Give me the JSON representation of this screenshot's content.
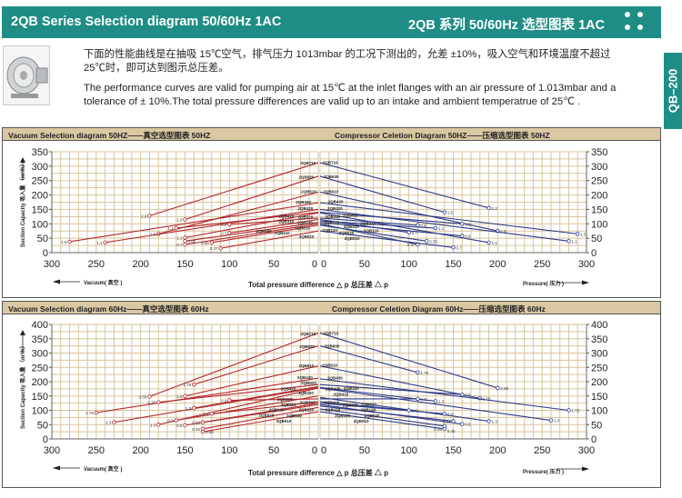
{
  "header": {
    "title_en": "2QB Series Selection diagram 50/60Hz 1AC",
    "title_cn": "2QB 系列 50/60Hz 选型图表 1AC",
    "menu_icon": "four-dots-icon"
  },
  "side_tab": "QB–200",
  "description": {
    "cn": "下面的性能曲线是在抽吸 15℃空气，排气压力 1013mbar 的工况下测出的，允差 ±10%，吸入空气和环境温度不超过 25℃时，即可达到图示总压差。",
    "en": "The performance curves are valid for pumping air at 15℃ at the inlet flanges with an air pressure of 1.013mbar and a tolerance of ± 10%.The total pressure differences are valid up to an intake and ambient temperatrue of 25℃ ."
  },
  "colors": {
    "header": "#1f8d85",
    "title_bar": "#d9c8a2",
    "grid": "#d9c39c",
    "vacuum_line": "#b3262b",
    "compressor_line": "#2b3a88"
  },
  "panels": [
    {
      "vacuum_title": "Vacuum Selection diagram 50HZ——真空选型图表 50HZ",
      "compressor_title": "Compressor Celetion Diagram 50HZ——压缩选型图表 50HZ",
      "ylabel": "Suction Capacity 吸入量 （m³/h）",
      "vacuum_axis": "Vacuum( 真空 )",
      "xlabel": "Total pressure difference △ p 总压差 △ p",
      "pressure_axis": "Pressure( 压力 )"
    },
    {
      "vacuum_title": "Vacuum Selection diagram 60Hz——真空选型图表 60Hz",
      "compressor_title": "Compressor Celetion Diagram 60Hz——压缩选型图表 60Hz",
      "ylabel": "Suction Capacity 吸入量 （m³/h）",
      "vacuum_axis": "Vacuum( 真空 )",
      "xlabel": "Total pressure difference △ p 总压差 △ p",
      "pressure_axis": "Pressure( 压力 )"
    }
  ],
  "chart_data": [
    {
      "type": "line",
      "title": "Vacuum Selection diagram 50HZ",
      "xlim": [
        300,
        0
      ],
      "ylim": [
        0,
        350
      ],
      "xticks": [
        "300",
        "250",
        "200",
        "150",
        "100",
        "50",
        "0"
      ],
      "yticks": [
        "0",
        "50",
        "100",
        "150",
        "200",
        "250",
        "300",
        "350"
      ],
      "grid": true,
      "series": [
        {
          "name": "2QB710",
          "points": [
            [
              0,
              312
            ],
            [
              190,
              128
            ]
          ],
          "end_label": "2.2"
        },
        {
          "name": "2QB630",
          "points": [
            [
              0,
              265
            ],
            [
              150,
              115
            ]
          ],
          "end_label": "1.5"
        },
        {
          "name": "2QB610",
          "points": [
            [
              0,
              210
            ],
            [
              180,
              65
            ]
          ],
          "end_label": "1.5"
        },
        {
          "name": "2QB430",
          "points": [
            [
              0,
              173
            ],
            [
              280,
              38
            ]
          ],
          "end_label": "1.5"
        },
        {
          "name": "2QB420",
          "points": [
            [
              0,
              150
            ],
            [
              240,
              35
            ]
          ],
          "end_label": "1.1"
        },
        {
          "name": "2QB320",
          "points": [
            [
              0,
              140
            ],
            [
              160,
              85
            ]
          ],
          "end_label": "1.1"
        },
        {
          "name": "2QB220",
          "points": [
            [
              0,
              120
            ],
            [
              100,
              98
            ]
          ],
          "end_label": "0.8"
        },
        {
          "name": "2QB410",
          "points": [
            [
              0,
              138
            ],
            [
              150,
              52
            ]
          ],
          "end_label": "1.1"
        },
        {
          "name": "2QB310",
          "points": [
            [
              0,
              115
            ],
            [
              100,
              68
            ]
          ],
          "end_label": "0.7"
        },
        {
          "name": "2QB210",
          "points": [
            [
              0,
              105
            ],
            [
              150,
              40
            ]
          ],
          "end_label": "0.85"
        },
        {
          "name": "2QB110",
          "points": [
            [
              0,
              100
            ],
            [
              150,
              28
            ]
          ],
          "end_label": "0.7"
        },
        {
          "name": "2QB120",
          "points": [
            [
              0,
              95
            ],
            [
              120,
              35
            ]
          ],
          "end_label": "0.55"
        },
        {
          "name": "2QB010",
          "points": [
            [
              0,
              75
            ],
            [
              110,
              15
            ]
          ],
          "end_label": "0.37"
        }
      ]
    },
    {
      "type": "line",
      "title": "Compressor Celetion Diagram 50HZ",
      "xlim": [
        0,
        300
      ],
      "ylim": [
        0,
        350
      ],
      "xticks": [
        "0",
        "50",
        "100",
        "150",
        "200",
        "250",
        "300"
      ],
      "yticks": [
        "0",
        "50",
        "100",
        "150",
        "200",
        "250",
        "300",
        "350"
      ],
      "grid": true,
      "series": [
        {
          "name": "2QB710",
          "points": [
            [
              0,
              312
            ],
            [
              190,
              155
            ]
          ],
          "end_label": "2.2"
        },
        {
          "name": "2QB630",
          "points": [
            [
              0,
              265
            ],
            [
              140,
              140
            ]
          ],
          "end_label": "1.5"
        },
        {
          "name": "2QB610",
          "points": [
            [
              0,
              210
            ],
            [
              200,
              75
            ]
          ],
          "end_label": "1.5"
        },
        {
          "name": "2QB430",
          "points": [
            [
              0,
              173
            ],
            [
              290,
              65
            ]
          ],
          "end_label": "1.5"
        },
        {
          "name": "2QB420",
          "points": [
            [
              0,
              150
            ],
            [
              280,
              40
            ]
          ],
          "end_label": "1.1"
        },
        {
          "name": "2QB320",
          "points": [
            [
              0,
              140
            ],
            [
              160,
              100
            ]
          ],
          "end_label": "1.5"
        },
        {
          "name": "2QB410",
          "points": [
            [
              0,
              138
            ],
            [
              190,
              35
            ]
          ],
          "end_label": "1.1"
        },
        {
          "name": "2QB220",
          "points": [
            [
              0,
              120
            ],
            [
              110,
              95
            ]
          ],
          "end_label": "0.8"
        },
        {
          "name": "2QB310",
          "points": [
            [
              0,
              110
            ],
            [
              130,
              85
            ]
          ],
          "end_label": "1.1"
        },
        {
          "name": "2QB210",
          "points": [
            [
              0,
              115
            ],
            [
              100,
              70
            ]
          ],
          "end_label": "0.7"
        },
        {
          "name": "2QB110",
          "points": [
            [
              0,
              105
            ],
            [
              160,
              58
            ]
          ],
          "end_label": "0.8"
        },
        {
          "name": "2QB120",
          "points": [
            [
              0,
              95
            ],
            [
              120,
              40
            ]
          ],
          "end_label": "0.55"
        },
        {
          "name": "2QB020",
          "points": [
            [
              0,
              100
            ],
            [
              110,
              28
            ]
          ],
          "end_label": "0.37"
        },
        {
          "name": "2QB010",
          "points": [
            [
              0,
              75
            ],
            [
              150,
              18
            ]
          ],
          "end_label": "0.7"
        }
      ]
    },
    {
      "type": "line",
      "title": "Vacuum Selection diagram 60Hz",
      "xlim": [
        300,
        0
      ],
      "ylim": [
        0,
        400
      ],
      "xticks": [
        "300",
        "250",
        "200",
        "150",
        "100",
        "50",
        "0"
      ],
      "yticks": [
        "0",
        "50",
        "100",
        "150",
        "200",
        "250",
        "300",
        "350",
        "400"
      ],
      "grid": true,
      "series": [
        {
          "name": "2QB710",
          "points": [
            [
              0,
              370
            ],
            [
              190,
              148
            ]
          ],
          "end_label": "2.55"
        },
        {
          "name": "2QB630",
          "points": [
            [
              0,
              325
            ],
            [
              140,
              190
            ]
          ],
          "end_label": "1.75"
        },
        {
          "name": "2QB610",
          "points": [
            [
              0,
              255
            ],
            [
              150,
              150
            ]
          ],
          "end_label": "1.5"
        },
        {
          "name": "2QB430",
          "points": [
            [
              0,
              212
            ],
            [
              250,
              92
            ]
          ],
          "end_label": "1.75"
        },
        {
          "name": "2QB420",
          "points": [
            [
              0,
              190
            ],
            [
              180,
              128
            ]
          ],
          "end_label": "1.75"
        },
        {
          "name": "2QB320",
          "points": [
            [
              0,
              180
            ],
            [
              230,
              58
            ]
          ],
          "end_label": "1.3"
        },
        {
          "name": "2QB410",
          "points": [
            [
              0,
              183
            ],
            [
              140,
              108
            ]
          ],
          "end_label": "1.3"
        },
        {
          "name": "2QB310",
          "points": [
            [
              0,
              140
            ],
            [
              100,
              135
            ]
          ],
          "end_label": "0.9"
        },
        {
          "name": "2QB220",
          "points": [
            [
              0,
              178
            ],
            [
              180,
              50
            ]
          ],
          "end_label": "1.3"
        },
        {
          "name": "2QB210",
          "points": [
            [
              0,
              150
            ],
            [
              160,
              65
            ]
          ],
          "end_label": "0.9"
        },
        {
          "name": "2QB120",
          "points": [
            [
              0,
              130
            ],
            [
              120,
              88
            ]
          ],
          "end_label": "0.6"
        },
        {
          "name": "2QB110",
          "points": [
            [
              0,
              120
            ],
            [
              150,
              48
            ]
          ],
          "end_label": "0.6"
        },
        {
          "name": "2QB020",
          "points": [
            [
              0,
              125
            ],
            [
              130,
              58
            ]
          ],
          "end_label": "0.62"
        },
        {
          "name": "2QB030",
          "points": [
            [
              0,
              110
            ],
            [
              130,
              35
            ]
          ],
          "end_label": "0.45"
        },
        {
          "name": "2QB010",
          "points": [
            [
              0,
              95
            ],
            [
              130,
              25
            ]
          ],
          "end_label": "0.45"
        }
      ]
    },
    {
      "type": "line",
      "title": "Compressor Celetion Diagram 60Hz",
      "xlim": [
        0,
        300
      ],
      "ylim": [
        0,
        400
      ],
      "xticks": [
        "0",
        "50",
        "100",
        "150",
        "200",
        "250",
        "300"
      ],
      "yticks": [
        "0",
        "50",
        "100",
        "150",
        "200",
        "250",
        "300",
        "350",
        "400"
      ],
      "grid": true,
      "series": [
        {
          "name": "2QB710",
          "points": [
            [
              0,
              370
            ],
            [
              200,
              178
            ]
          ],
          "end_label": "2.55"
        },
        {
          "name": "2QB630",
          "points": [
            [
              0,
              325
            ],
            [
              110,
              232
            ]
          ],
          "end_label": "1.75"
        },
        {
          "name": "2QB610",
          "points": [
            [
              0,
              255
            ],
            [
              180,
              142
            ]
          ],
          "end_label": "1.75"
        },
        {
          "name": "2QB430",
          "points": [
            [
              0,
              210
            ],
            [
              280,
              100
            ]
          ],
          "end_label": "1.75"
        },
        {
          "name": "2QB420",
          "points": [
            [
              0,
              190
            ],
            [
              160,
              155
            ]
          ],
          "end_label": "1.5"
        },
        {
          "name": "2QB320",
          "points": [
            [
              0,
              180
            ],
            [
              130,
              132
            ]
          ],
          "end_label": "1.3"
        },
        {
          "name": "2QB410",
          "points": [
            [
              0,
              178
            ],
            [
              260,
              65
            ]
          ],
          "end_label": "1.3"
        },
        {
          "name": "2QB310",
          "points": [
            [
              0,
              140
            ],
            [
              110,
              140
            ]
          ],
          "end_label": "0.9"
        },
        {
          "name": "2QB220",
          "points": [
            [
              0,
              145
            ],
            [
              190,
              62
            ]
          ],
          "end_label": "1.3"
        },
        {
          "name": "2QB210",
          "points": [
            [
              0,
              125
            ],
            [
              140,
              88
            ]
          ],
          "end_label": "0.9"
        },
        {
          "name": "2QB120",
          "points": [
            [
              0,
              130
            ],
            [
              100,
              100
            ]
          ],
          "end_label": "0.6"
        },
        {
          "name": "2QB110",
          "points": [
            [
              0,
              120
            ],
            [
              160,
              52
            ]
          ],
          "end_label": "0.6"
        },
        {
          "name": "2QB020",
          "points": [
            [
              0,
              115
            ],
            [
              150,
              62
            ]
          ],
          "end_label": "0.62"
        },
        {
          "name": "2QB030",
          "points": [
            [
              0,
              105
            ],
            [
              140,
              45
            ]
          ],
          "end_label": "0.45"
        },
        {
          "name": "2QB010",
          "points": [
            [
              0,
              95
            ],
            [
              140,
              35
            ]
          ],
          "end_label": "0.45"
        }
      ]
    }
  ]
}
